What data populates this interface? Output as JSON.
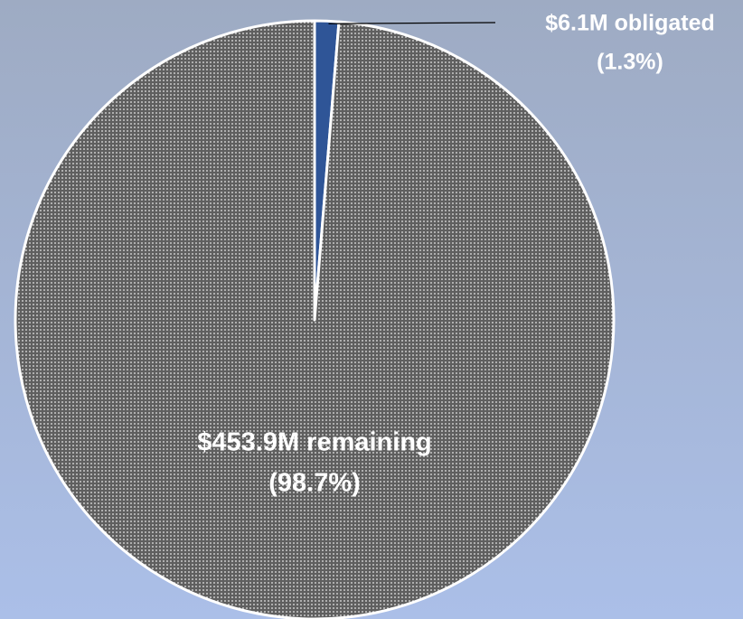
{
  "chart_data": {
    "type": "pie",
    "categories": [
      "$6.1M obligated",
      "$453.9M remaining"
    ],
    "values": [
      1.3,
      98.7
    ],
    "value_labels": [
      "(1.3%)",
      "(98.7%)"
    ],
    "colors": [
      "#2f5597",
      "#5f5f5f"
    ]
  }
}
